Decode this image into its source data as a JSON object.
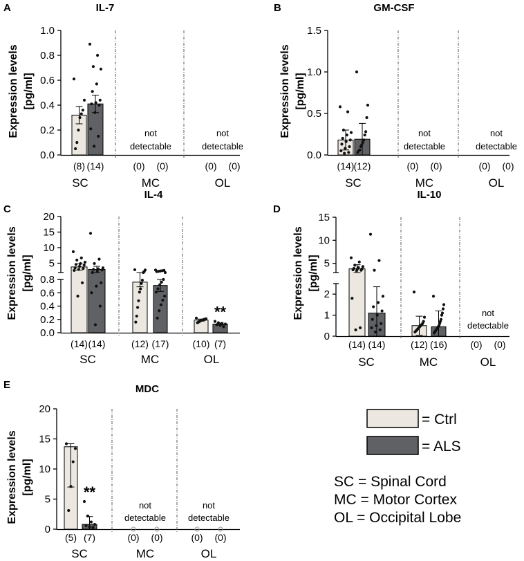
{
  "legend": {
    "items": [
      {
        "label": "= Ctrl",
        "color": "#ece8e1"
      },
      {
        "label": "= ALS",
        "color": "#5f6164"
      }
    ],
    "abbreviations": [
      "SC = Spinal Cord",
      "MC = Motor Cortex",
      "OL = Occipital Lobe"
    ]
  },
  "chart_data": [
    {
      "panel": "A",
      "type": "bar",
      "title": "IL-7",
      "ylabel": [
        "Expression levels",
        "[pg/ml]"
      ],
      "yticks": [
        "0.0",
        "0.2",
        "0.4",
        "0.6",
        "0.8",
        "1.0"
      ],
      "groups": [
        {
          "region": "SC",
          "not_detectable": false,
          "counts": [
            "(8)",
            "(14)"
          ],
          "series": [
            {
              "name": "Ctrl",
              "mean": 0.32,
              "err": 0.07,
              "points": [
                0.61,
                0.44,
                0.36,
                0.33,
                0.3,
                0.2,
                0.1,
                0.05
              ]
            },
            {
              "name": "ALS",
              "mean": 0.41,
              "err": 0.07,
              "points": [
                0.89,
                0.8,
                0.71,
                0.69,
                0.57,
                0.51,
                0.44,
                0.42,
                0.41,
                0.4,
                0.34,
                0.21,
                0.15,
                0.07
              ]
            }
          ]
        },
        {
          "region": "MC",
          "not_detectable": true,
          "counts": [
            "(0)",
            "(0)"
          ]
        },
        {
          "region": "OL",
          "not_detectable": true,
          "counts": [
            "(0)",
            "(0)"
          ]
        }
      ]
    },
    {
      "panel": "B",
      "type": "bar",
      "title": "GM-CSF",
      "ylabel": [
        "Expression levels",
        "[pg/ml]"
      ],
      "yticks": [
        "0.0",
        "0.5",
        "1.0",
        "1.5"
      ],
      "groups": [
        {
          "region": "SC",
          "not_detectable": false,
          "counts": [
            "(14)",
            "(12)"
          ],
          "series": [
            {
              "name": "Ctrl",
              "mean": 0.18,
              "err": 0.12,
              "points": [
                0.58,
                0.52,
                0.3,
                0.27,
                0.24,
                0.2,
                0.18,
                0.16,
                0.13,
                0.1,
                0.08,
                0.05,
                0.03,
                0.02
              ]
            },
            {
              "name": "ALS",
              "mean": 0.19,
              "err": 0.19,
              "points": [
                1.0,
                0.6,
                0.45,
                0.28,
                0.24,
                0.18,
                0.15,
                0.12,
                0.1,
                0.06,
                0.05,
                0.03
              ]
            }
          ]
        },
        {
          "region": "MC",
          "not_detectable": true,
          "counts": [
            "(0)",
            "(0)"
          ]
        },
        {
          "region": "OL",
          "not_detectable": true,
          "counts": [
            "(0)",
            "(0)"
          ]
        }
      ]
    },
    {
      "panel": "C",
      "type": "bar",
      "title": "IL-4",
      "ylabel": [
        "Expression levels",
        "[pg/ml]"
      ],
      "yticks_lower": [
        "0.0",
        "0.2",
        "0.4",
        "0.6",
        "0.8"
      ],
      "yticks_upper": [
        "5",
        "10",
        "15",
        "20"
      ],
      "axis_break": [
        0.9,
        2.0
      ],
      "groups": [
        {
          "region": "SC",
          "not_detectable": false,
          "counts": [
            "(14)",
            "(14)"
          ],
          "series": [
            {
              "name": "Ctrl",
              "mean": 3.8,
              "err": 1.0,
              "points": [
                8.7,
                6.7,
                6.0,
                5.3,
                4.9,
                4.6,
                4.4,
                4.0,
                3.5,
                3.3,
                3.0,
                2.7,
                0.75,
                0.55
              ]
            },
            {
              "name": "ALS",
              "mean": 3.0,
              "err": 1.0,
              "points": [
                14.6,
                6.3,
                4.9,
                3.5,
                3.2,
                3.0,
                2.8,
                2.5,
                0.84,
                0.75,
                0.7,
                0.6,
                0.4,
                0.12
              ]
            }
          ]
        },
        {
          "region": "MC",
          "not_detectable": false,
          "counts": [
            "(12)",
            "(17)"
          ],
          "series": [
            {
              "name": "Ctrl",
              "mean": 0.76,
              "err": 0.07,
              "points": [
                2.9,
                2.8,
                2.3,
                0.83,
                0.79,
                0.74,
                0.66,
                0.61,
                0.48,
                0.38,
                0.25,
                0.16
              ]
            },
            {
              "name": "ALS",
              "mean": 0.71,
              "err": 0.09,
              "points": [
                2.8,
                2.7,
                2.6,
                2.5,
                2.4,
                2.3,
                0.86,
                0.8,
                0.76,
                0.72,
                0.66,
                0.61,
                0.55,
                0.49,
                0.42,
                0.33,
                0.22
              ]
            }
          ]
        },
        {
          "region": "OL",
          "not_detectable": false,
          "counts": [
            "(10)",
            "(7)"
          ],
          "annotation": "**",
          "series": [
            {
              "name": "Ctrl",
              "mean": 0.19,
              "err": 0.015,
              "points": [
                0.22,
                0.21,
                0.2,
                0.2,
                0.19,
                0.19,
                0.18,
                0.17,
                0.16,
                0.15
              ]
            },
            {
              "name": "ALS",
              "mean": 0.13,
              "err": 0.015,
              "points": [
                0.17,
                0.15,
                0.14,
                0.13,
                0.12,
                0.11,
                0.09
              ]
            }
          ]
        }
      ]
    },
    {
      "panel": "D",
      "type": "bar",
      "title": "IL-10",
      "ylabel": [
        "Expression levels",
        "[pg/ml]"
      ],
      "yticks_lower": [
        "0",
        "1",
        "2"
      ],
      "yticks_upper": [
        "5",
        "10",
        "15"
      ],
      "axis_break": [
        2.5,
        3.0
      ],
      "groups": [
        {
          "region": "SC",
          "not_detectable": false,
          "counts": [
            "(14)",
            "(14)"
          ],
          "series": [
            {
              "name": "Ctrl",
              "mean": 3.8,
              "err": 0.9,
              "points": [
                6.2,
                5.3,
                4.6,
                4.3,
                4.1,
                3.9,
                3.8,
                3.8,
                3.6,
                3.5,
                3.4,
                1.8,
                0.4,
                0.3
              ]
            },
            {
              "name": "ALS",
              "mean": 1.1,
              "err": 1.25,
              "points": [
                11.3,
                5.6,
                3.5,
                1.9,
                1.6,
                1.4,
                1.2,
                1.0,
                0.8,
                0.6,
                0.5,
                0.4,
                0.3,
                0.2
              ]
            }
          ]
        },
        {
          "region": "MC",
          "not_detectable": false,
          "counts": [
            "(12)",
            "(16)"
          ],
          "series": [
            {
              "name": "Ctrl",
              "mean": 0.5,
              "err": 0.45,
              "points": [
                2.1,
                0.9,
                0.7,
                0.6,
                0.55,
                0.5,
                0.45,
                0.4,
                0.35,
                0.3,
                0.25,
                0.2
              ]
            },
            {
              "name": "ALS",
              "mean": 0.45,
              "err": 0.75,
              "points": [
                1.9,
                1.5,
                1.3,
                1.1,
                1.0,
                0.8,
                0.7,
                0.6,
                0.5,
                0.45,
                0.4,
                0.35,
                0.3,
                0.25,
                0.2,
                0.15
              ]
            }
          ]
        },
        {
          "region": "OL",
          "not_detectable": true,
          "counts": [
            "(0)",
            "(0)"
          ]
        }
      ]
    },
    {
      "panel": "E",
      "type": "bar",
      "title": "MDC",
      "ylabel": [
        "Expression levels",
        "[pg/ml]"
      ],
      "yticks": [
        "0",
        "5",
        "10",
        "15",
        "20"
      ],
      "groups": [
        {
          "region": "SC",
          "not_detectable": false,
          "counts": [
            "(5)",
            "(7)"
          ],
          "annotation": "**",
          "series": [
            {
              "name": "Ctrl",
              "mean": 13.7,
              "err": 0.5,
              "err_low": 6.7,
              "points": [
                14.2,
                13.4,
                11.2,
                7.1,
                3.1
              ]
            },
            {
              "name": "ALS",
              "mean": 0.8,
              "err": 1.3,
              "points": [
                4.6,
                2.2,
                1.2,
                0.8,
                0.6,
                0.4,
                0.3
              ]
            }
          ]
        },
        {
          "region": "MC",
          "not_detectable": true,
          "counts": [
            "(0)",
            "(0)"
          ]
        },
        {
          "region": "OL",
          "not_detectable": true,
          "counts": [
            "(0)",
            "(0)"
          ]
        }
      ]
    }
  ]
}
